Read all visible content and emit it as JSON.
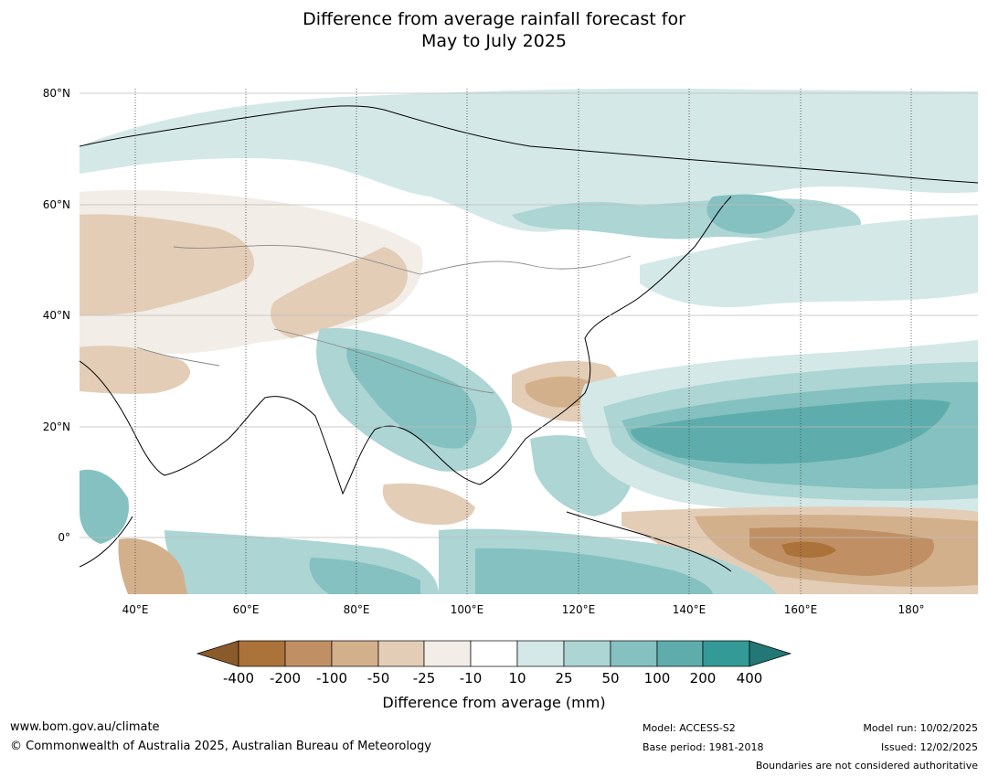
{
  "title": {
    "line1": "Difference from average rainfall forecast for",
    "line2": "May to July 2025"
  },
  "map": {
    "lat_labels": [
      "80°N",
      "60°N",
      "40°N",
      "20°N",
      "0°"
    ],
    "lon_labels": [
      "40°E",
      "60°E",
      "80°E",
      "100°E",
      "120°E",
      "140°E",
      "160°E",
      "180°"
    ],
    "colors": {
      "dry_400": "#8b5a2b",
      "dry_200": "#ab733a",
      "dry_100": "#c09064",
      "dry_50": "#d3b08c",
      "dry_25": "#e3cdb7",
      "dry_10": "#f2ede6",
      "neutral": "#ffffff",
      "wet_10": "#d4e8e7",
      "wet_25": "#acd5d4",
      "wet_50": "#84c1c0",
      "wet_100": "#5eadac",
      "wet_200": "#339a97",
      "wet_400": "#237875"
    }
  },
  "colorbar": {
    "ticks": [
      "-400",
      "-200",
      "-100",
      "-50",
      "-25",
      "-10",
      "10",
      "25",
      "50",
      "100",
      "200",
      "400"
    ],
    "label": "Difference from average (mm)"
  },
  "footer": {
    "website": "www.bom.gov.au/climate",
    "copyright": "© Commonwealth of Australia 2025, Australian Bureau of Meteorology",
    "model": "Model: ACCESS-S2",
    "base_period": "Base period: 1981-2018",
    "model_run": "Model run: 10/02/2025",
    "issued": "Issued: 12/02/2025",
    "disclaimer": "Boundaries are not considered authoritative"
  }
}
